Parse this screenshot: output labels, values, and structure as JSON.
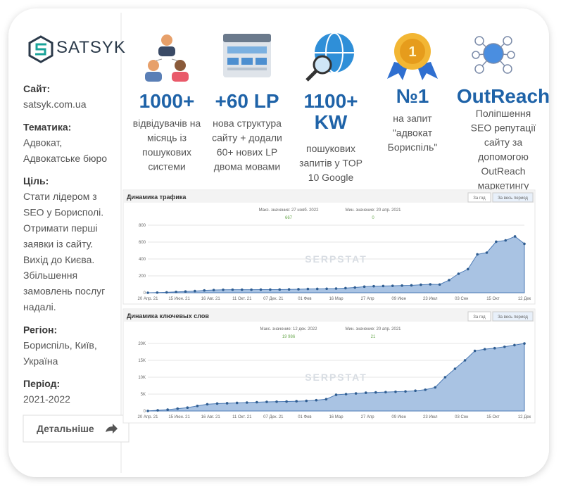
{
  "logo": {
    "name": "SATSYK"
  },
  "details": [
    {
      "label": "Сайт:",
      "lines": [
        "satsyk.com.ua"
      ]
    },
    {
      "label": "Тематика:",
      "lines": [
        "Адвокат,",
        "Адвокатське бюро"
      ]
    },
    {
      "label": "Ціль:",
      "lines": [
        "Стати лідером з",
        "SEO у Борисполі.",
        "Отримати перші",
        "заявки із сайту.",
        "Вихід до Києва.",
        "Збільшення",
        "замовлень послуг",
        "надалі."
      ]
    },
    {
      "label": "Регіон:",
      "lines": [
        "Бориспіль, Київ,",
        "Україна"
      ]
    },
    {
      "label": "Період:",
      "lines": [
        "2021-2022"
      ]
    }
  ],
  "button": "Детальніше",
  "stats": [
    {
      "value_lines": [
        "1000+"
      ],
      "desc_lines": [
        "відвідувачів на",
        "місяць із",
        "пошукових",
        "системи"
      ]
    },
    {
      "value_lines": [
        "+60 LP"
      ],
      "desc_lines": [
        "нова структура",
        "сайту + додали",
        "60+ нових LP",
        "двома мовами"
      ]
    },
    {
      "value_lines": [
        "1100+",
        "KW"
      ],
      "desc_lines": [
        "пошукових",
        "запитів у TOP",
        "10 Google"
      ]
    },
    {
      "value_lines": [
        "№1"
      ],
      "desc_lines": [
        "на запит",
        "\"адвокат",
        "Бориспіль\""
      ]
    },
    {
      "value_lines": [
        "OutReach"
      ],
      "desc_lines": [
        "Поліпшення",
        "SEO репутації",
        "сайту за",
        "допомогою",
        "OutReach",
        "маркетингу"
      ]
    }
  ],
  "chart_data": [
    {
      "type": "area",
      "title": "Динамика трафика",
      "buttons": [
        "За год",
        "За весь период"
      ],
      "max_text": "Макс. значение: 27 нояб. 2022",
      "max_value_text": "667",
      "min_text": "Мин. значение: 20 апр. 2021",
      "min_value_text": "0",
      "watermark": "SERPSTAT",
      "color": "#a9c3e3",
      "ylim": [
        0,
        800
      ],
      "yticks": [
        0,
        200,
        400,
        600,
        800
      ],
      "x_labels": [
        "20 Апр. 21",
        "15 Июн. 21",
        "16 Авг. 21",
        "11 Окт. 21",
        "07 Дек. 21",
        "01 Фев",
        "16 Мар",
        "27 Апр",
        "09 Июн",
        "23 Июл",
        "03 Сен",
        "15 Окт",
        "12 Дек"
      ],
      "values": [
        0,
        2,
        5,
        10,
        15,
        20,
        28,
        32,
        35,
        36,
        36,
        36,
        37,
        37,
        38,
        40,
        42,
        45,
        46,
        48,
        50,
        55,
        62,
        72,
        78,
        80,
        82,
        85,
        88,
        95,
        100,
        98,
        150,
        225,
        280,
        455,
        475,
        605,
        620,
        667,
        580
      ]
    },
    {
      "type": "area",
      "title": "Динамика ключевых слов",
      "buttons": [
        "За год",
        "За весь период"
      ],
      "max_text": "Макс. значение: 12 дек. 2022",
      "max_value_text": "19 986",
      "min_text": "Мин. значение: 20 апр. 2021",
      "min_value_text": "21",
      "watermark": "SERPSTAT",
      "color": "#a9c3e3",
      "ylim": [
        0,
        20000
      ],
      "yticks": [
        0,
        {
          "value": 5000,
          "label": "5K"
        },
        {
          "value": 10000,
          "label": "10K"
        },
        {
          "value": 15000,
          "label": "15K"
        },
        {
          "value": 20000,
          "label": "20K"
        }
      ],
      "x_labels": [
        "20 Апр. 21",
        "15 Июн. 21",
        "16 Авг. 21",
        "11 Окт. 21",
        "07 Дек. 21",
        "01 Фев",
        "16 Мар",
        "27 Апр",
        "09 Июн",
        "23 Июл",
        "03 Сен",
        "15 Окт",
        "12 Дек"
      ],
      "values": [
        21,
        200,
        400,
        700,
        1000,
        1500,
        2000,
        2200,
        2300,
        2400,
        2500,
        2600,
        2700,
        2750,
        2800,
        2900,
        3000,
        3200,
        3500,
        4800,
        5000,
        5200,
        5400,
        5500,
        5600,
        5700,
        5800,
        6000,
        6300,
        7000,
        10000,
        12500,
        15000,
        17800,
        18300,
        18600,
        19000,
        19500,
        19986
      ]
    }
  ]
}
